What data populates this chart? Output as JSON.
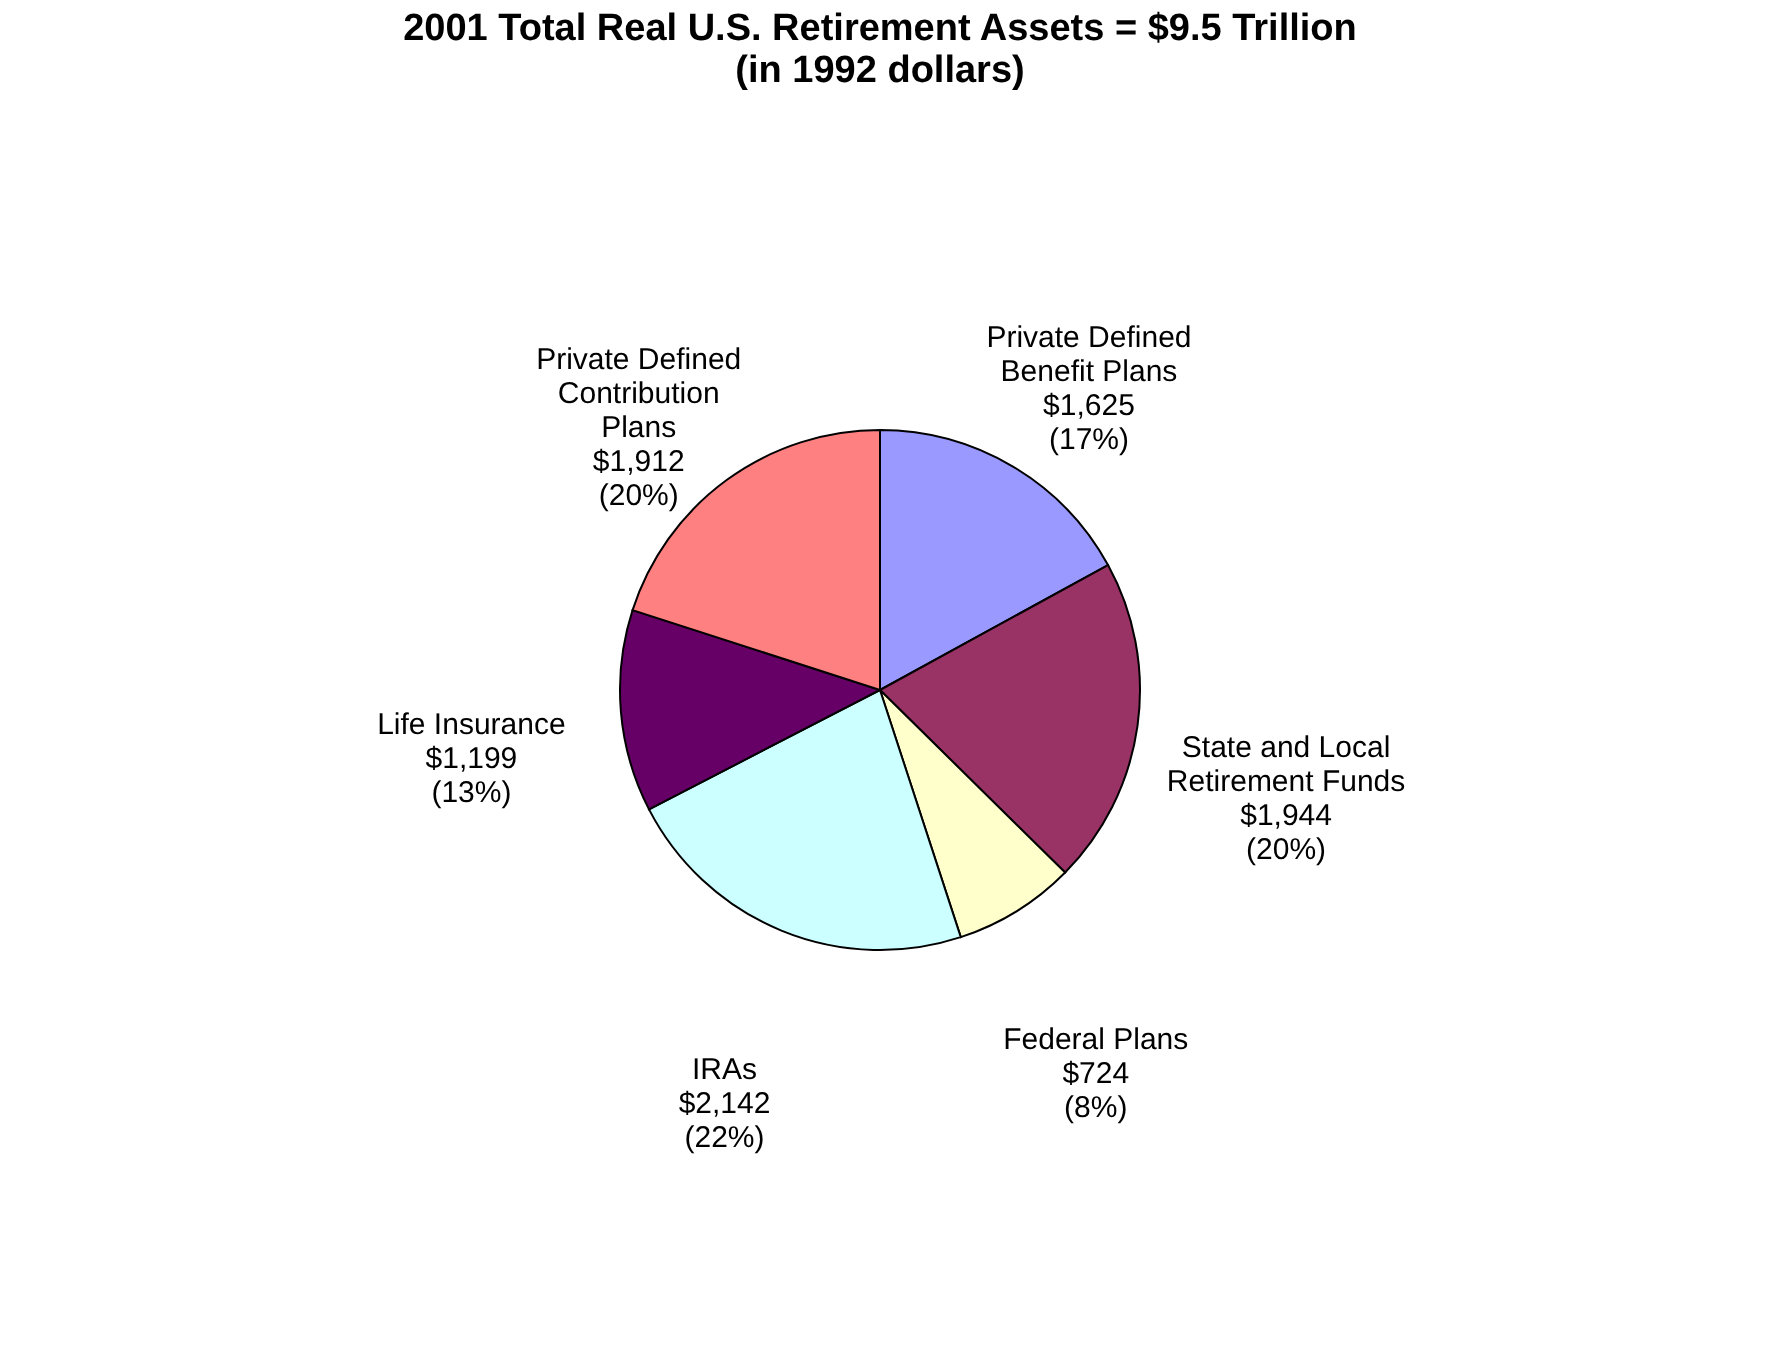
{
  "chart_data": {
    "type": "pie",
    "title": [
      "2001 Total Real U.S. Retirement Assets = $9.5 Trillion",
      "(in 1992 dollars)"
    ],
    "categories": [
      "Private Defined Benefit Plans",
      "State and Local Retirement Funds",
      "Federal Plans",
      "IRAs",
      "Life Insurance",
      "Private Defined Contribution Plans"
    ],
    "values": [
      1625,
      1944,
      724,
      2142,
      1199,
      1912
    ],
    "colors": [
      "#9999ff",
      "#993366",
      "#ffffcc",
      "#ccffff",
      "#660066",
      "#ff8080"
    ],
    "value_labels": [
      "$1,625 (17%)",
      "$1,944 (20%)",
      "$724 (8%)",
      "$2,142 (22%)",
      "$1,199 (13%)",
      "$1,912 (20%)"
    ],
    "legend": false
  }
}
